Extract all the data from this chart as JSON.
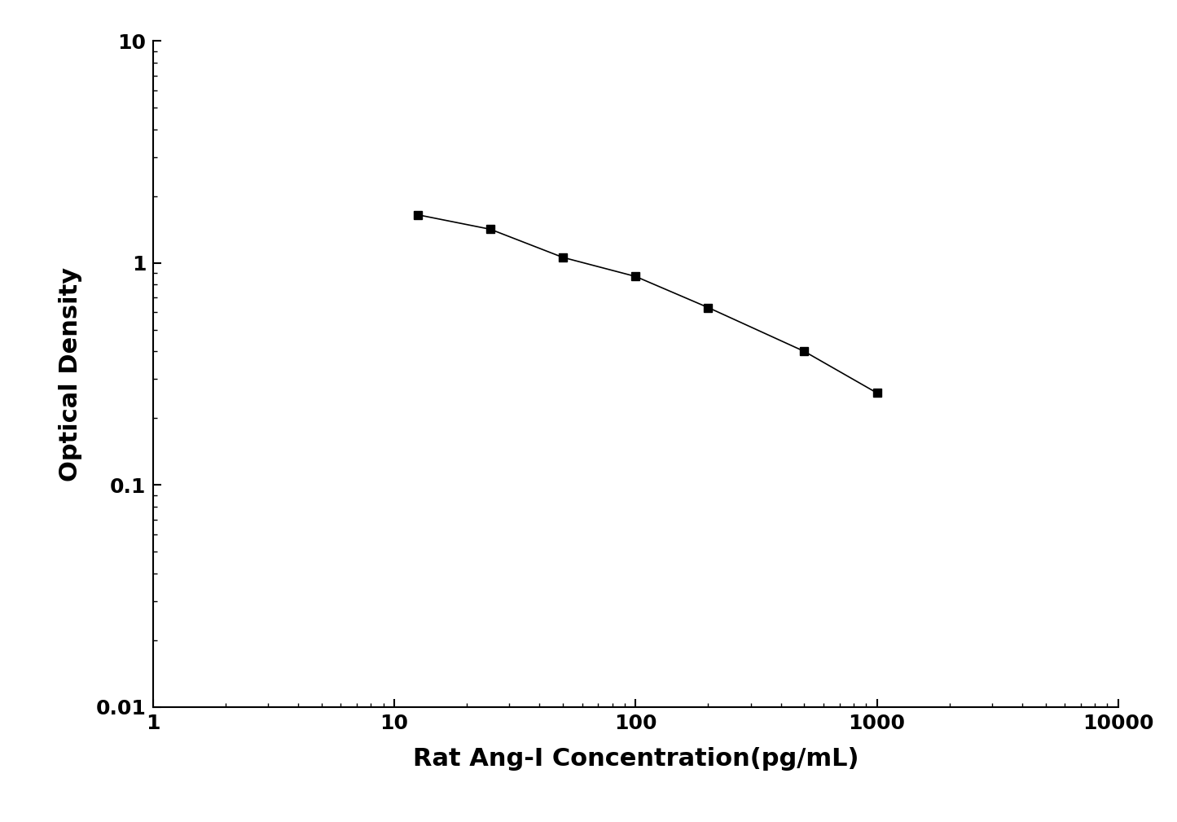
{
  "x": [
    12.5,
    25,
    50,
    100,
    200,
    500,
    1000
  ],
  "y": [
    1.65,
    1.42,
    1.06,
    0.87,
    0.63,
    0.4,
    0.26
  ],
  "xlabel": "Rat Ang-I Concentration(pg/mL)",
  "ylabel": "Optical Density",
  "xlim": [
    1,
    10000
  ],
  "ylim": [
    0.01,
    10
  ],
  "background_color": "#ffffff",
  "line_color": "#000000",
  "marker": "s",
  "marker_size": 7,
  "line_width": 1.2,
  "xlabel_fontsize": 22,
  "ylabel_fontsize": 22,
  "tick_fontsize": 18,
  "axis_label_fontweight": "bold",
  "tick_label_fontweight": "bold"
}
